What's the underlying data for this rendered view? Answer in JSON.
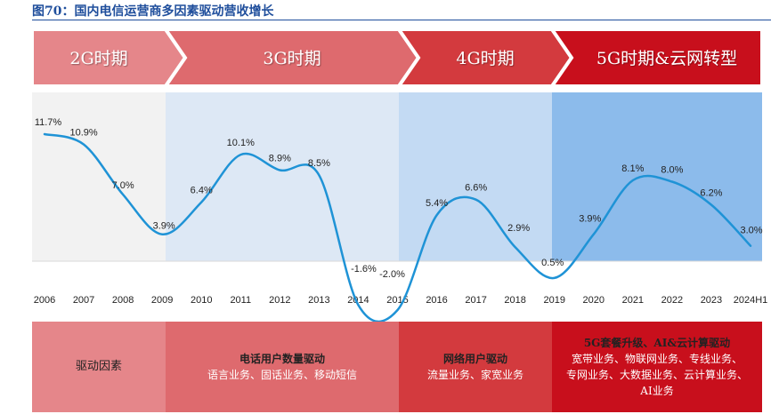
{
  "figure_title": "图70：国内电信运营商多因素驱动营收增长",
  "eras": [
    {
      "label": "2G时期",
      "color": "#e5868a"
    },
    {
      "label": "3G时期",
      "color": "#de6a6e"
    },
    {
      "label": "4G时期",
      "color": "#d33a3e"
    },
    {
      "label": "5G时期&云网转型",
      "color": "#c80f1c"
    }
  ],
  "driver_boxes": [
    {
      "heading": "驱动因素",
      "lines": []
    },
    {
      "heading": "电话用户数量驱动",
      "lines": [
        "语言业务、固话业务、移动短信"
      ]
    },
    {
      "heading": "网络用户驱动",
      "lines": [
        "流量业务、家宽业务"
      ]
    },
    {
      "heading": "5G套餐升级、AI&云计算驱动",
      "lines": [
        "宽带业务、物联网业务、专线业务、",
        "专网业务、大数据业务、云计算业务、",
        "AI业务"
      ]
    }
  ],
  "colors": {
    "line": "#1f93d6",
    "band_2g": "#f2f2f2",
    "band_3g": "#dde8f5",
    "band_4g": "#c3daf3",
    "band_5g": "#8cbbeb"
  },
  "chart_data": {
    "type": "line",
    "x": [
      "2006",
      "2007",
      "2008",
      "2009",
      "2010",
      "2011",
      "2012",
      "2013",
      "2014",
      "2015",
      "2016",
      "2017",
      "2018",
      "2019",
      "2020",
      "2021",
      "2022",
      "2023",
      "2024H1"
    ],
    "series": [
      {
        "values": [
          11.7,
          10.9,
          7.0,
          3.9,
          6.4,
          10.1,
          8.9,
          8.5,
          -1.6,
          -2.0,
          5.4,
          6.6,
          2.9,
          0.5,
          3.9,
          8.1,
          8.0,
          6.2,
          3.0
        ]
      }
    ],
    "labels": [
      "11.7%",
      "10.9%",
      "7.0%",
      "3.9%",
      "6.4%",
      "10.1%",
      "8.9%",
      "8.5%",
      "-1.6%",
      "-2.0%",
      "5.4%",
      "6.6%",
      "2.9%",
      "0.5%",
      "3.9%",
      "8.1%",
      "8.0%",
      "6.2%",
      "3.0%"
    ],
    "ylim": [
      -2.0,
      11.7
    ],
    "grid": false,
    "legend": "none"
  }
}
